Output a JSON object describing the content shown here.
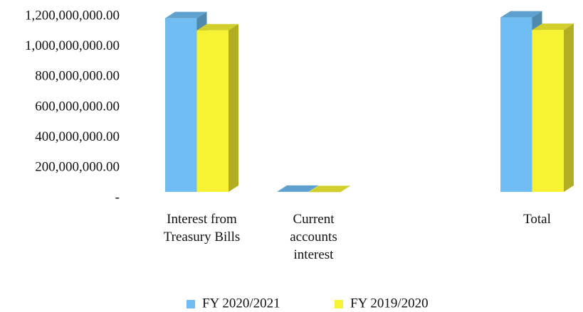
{
  "chart_data": {
    "type": "bar3d",
    "categories": [
      "Interest from Treasury Bills",
      "Current accounts interest",
      null,
      "Total"
    ],
    "series": [
      {
        "name": "FY 2020/2021",
        "color": "#6fbdf2",
        "values": [
          1150000000,
          5000000,
          null,
          1155000000
        ]
      },
      {
        "name": "FY 2019/2020",
        "color": "#f7f232",
        "values": [
          1070000000,
          3000000,
          null,
          1073000000
        ]
      }
    ],
    "ylim": [
      0,
      1200000000
    ],
    "yticks": [
      {
        "value": 0,
        "label": "-"
      },
      {
        "value": 200000000,
        "label": "200,000,000.00"
      },
      {
        "value": 400000000,
        "label": "400,000,000.00"
      },
      {
        "value": 600000000,
        "label": "600,000,000.00"
      },
      {
        "value": 800000000,
        "label": "800,000,000.00"
      },
      {
        "value": 1000000000,
        "label": "1,000,000,000.00"
      },
      {
        "value": 1200000000,
        "label": "1,200,000,000.00"
      }
    ],
    "grid": false,
    "legend": "bottom"
  }
}
